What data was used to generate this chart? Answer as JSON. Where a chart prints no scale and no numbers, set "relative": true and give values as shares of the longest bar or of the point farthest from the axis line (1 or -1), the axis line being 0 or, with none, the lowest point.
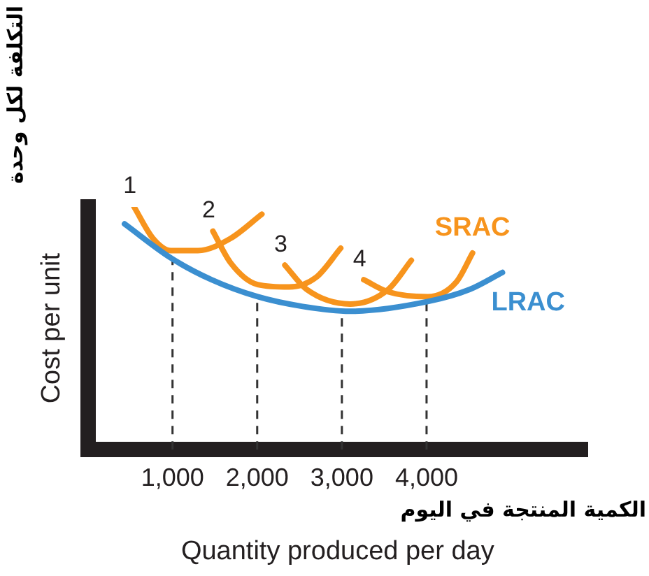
{
  "chart_data": {
    "type": "line",
    "xlabel": "Quantity produced per day",
    "ylabel": "Cost per unit",
    "relative": true,
    "grid": false,
    "legend": false,
    "marker": "none",
    "xlim": [
      0,
      5900
    ],
    "xticks": [
      {
        "value": 1000,
        "label": "1,000"
      },
      {
        "value": 2000,
        "label": "2,000"
      },
      {
        "value": 3000,
        "label": "3,000"
      },
      {
        "value": 4000,
        "label": "4,000"
      }
    ],
    "series": [
      {
        "name": "LRAC",
        "color": "#3b8fd0",
        "x": [
          433,
          979,
          1461,
          2006,
          2536,
          3098,
          4013,
          4510,
          4896
        ],
        "values": [
          0.93,
          0.79,
          0.7,
          0.63,
          0.59,
          0.57,
          0.61,
          0.66,
          0.73
        ]
      },
      {
        "name": "1",
        "color": "#f7941d",
        "x": [
          546,
          770,
          979,
          1300,
          1685,
          2055
        ],
        "values": [
          1.0,
          0.87,
          0.82,
          0.82,
          0.87,
          0.97
        ]
      },
      {
        "name": "2",
        "color": "#f7941d",
        "x": [
          1477,
          1685,
          2006,
          2376,
          2697,
          2986
        ],
        "values": [
          0.9,
          0.77,
          0.68,
          0.67,
          0.71,
          0.83
        ]
      },
      {
        "name": "3",
        "color": "#f7941d",
        "x": [
          2327,
          2584,
          3098,
          3547,
          3820
        ],
        "values": [
          0.76,
          0.66,
          0.6,
          0.66,
          0.78
        ]
      },
      {
        "name": "4",
        "color": "#f7941d",
        "x": [
          3258,
          3547,
          4013,
          4350,
          4543
        ],
        "values": [
          0.7,
          0.65,
          0.63,
          0.69,
          0.81
        ]
      }
    ],
    "ref_lines": [
      {
        "axis": "x",
        "value": 1000,
        "line_style": "dashed"
      },
      {
        "axis": "x",
        "value": 2000,
        "line_style": "dashed"
      },
      {
        "axis": "x",
        "value": 3000,
        "line_style": "dashed"
      },
      {
        "axis": "x",
        "value": 4000,
        "line_style": "dashed"
      }
    ],
    "annotations": [
      "SRAC",
      "التكلفة لكل وحدة",
      "الكمية المنتجة في اليوم"
    ]
  }
}
